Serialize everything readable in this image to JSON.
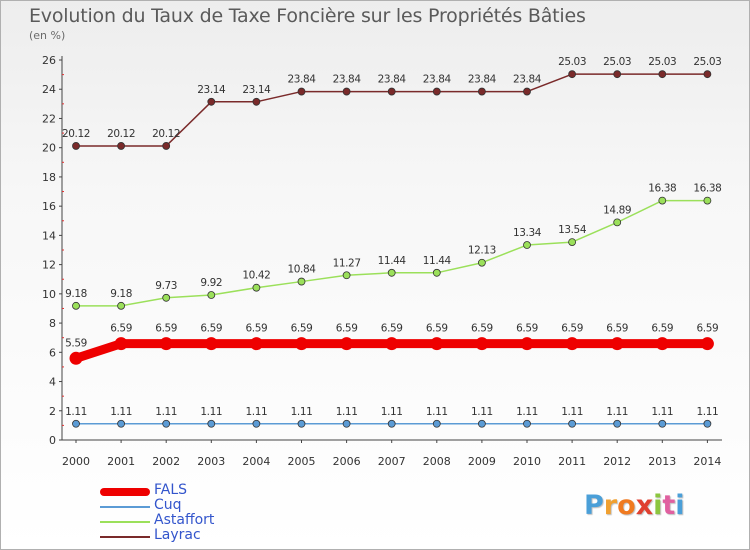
{
  "header": {
    "title": "Evolution du Taux de Taxe Foncière sur les Propriétés Bâties",
    "unit": "(en %)"
  },
  "logo": {
    "letters": [
      "P",
      "r",
      "o",
      "x",
      "i",
      "t",
      "i"
    ],
    "colors": [
      "#4a9fd8",
      "#f0a030",
      "#f07a20",
      "#e04030",
      "#8cc63f",
      "#e060a0",
      "#4a9fd8"
    ]
  },
  "chart_data": {
    "type": "line",
    "title": "Evolution du Taux de Taxe Foncière sur les Propriétés Bâties",
    "ylabel": "(en %)",
    "xlabel": "",
    "ylim": [
      0,
      26
    ],
    "yticks": [
      0,
      2,
      4,
      6,
      8,
      10,
      12,
      14,
      16,
      18,
      20,
      22,
      24,
      26
    ],
    "grid": false,
    "legend": "bottom-left",
    "x": [
      "2000",
      "2001",
      "2002",
      "2003",
      "2004",
      "2005",
      "2006",
      "2007",
      "2008",
      "2009",
      "2010",
      "2011",
      "2012",
      "2013",
      "2014"
    ],
    "series": [
      {
        "name": "FALS",
        "color": "#ee0000",
        "emphasis": true,
        "values": [
          5.59,
          6.59,
          6.59,
          6.59,
          6.59,
          6.59,
          6.59,
          6.59,
          6.59,
          6.59,
          6.59,
          6.59,
          6.59,
          6.59,
          6.59
        ],
        "labels": [
          "5.59",
          "6.59",
          "6.59",
          "6.59",
          "6.59",
          "6.59",
          "6.59",
          "6.59",
          "6.59",
          "6.59",
          "6.59",
          "6.59",
          "6.59",
          "6.59",
          "6.59"
        ]
      },
      {
        "name": "Cuq",
        "color": "#5b9bd5",
        "emphasis": false,
        "values": [
          1.11,
          1.11,
          1.11,
          1.11,
          1.11,
          1.11,
          1.11,
          1.11,
          1.11,
          1.11,
          1.11,
          1.11,
          1.11,
          1.11,
          1.11
        ],
        "labels": [
          "1.11",
          "1.11",
          "1.11",
          "1.11",
          "1.11",
          "1.11",
          "1.11",
          "1.11",
          "1.11",
          "1.11",
          "1.11",
          "1.11",
          "1.11",
          "1.11",
          "1.11"
        ]
      },
      {
        "name": "Astaffort",
        "color": "#9be05a",
        "emphasis": false,
        "values": [
          9.18,
          9.18,
          9.73,
          9.92,
          10.42,
          10.84,
          11.27,
          11.44,
          11.44,
          12.13,
          13.34,
          13.54,
          14.89,
          16.38,
          16.38
        ],
        "labels": [
          "9.18",
          "9.18",
          "9.73",
          "9.92",
          "10.42",
          "10.84",
          "11.27",
          "11.44",
          "11.44",
          "12.13",
          "13.34",
          "13.54",
          "14.89",
          "16.38",
          "16.38"
        ]
      },
      {
        "name": "Layrac",
        "color": "#7a2a2a",
        "emphasis": false,
        "values": [
          20.12,
          20.12,
          20.12,
          23.14,
          23.14,
          23.84,
          23.84,
          23.84,
          23.84,
          23.84,
          23.84,
          25.03,
          25.03,
          25.03,
          25.03
        ],
        "labels": [
          "20.12",
          "20.12",
          "20.12",
          "23.14",
          "23.14",
          "23.84",
          "23.84",
          "23.84",
          "23.84",
          "23.84",
          "23.84",
          "25.03",
          "25.03",
          "25.03",
          "25.03"
        ]
      }
    ]
  }
}
